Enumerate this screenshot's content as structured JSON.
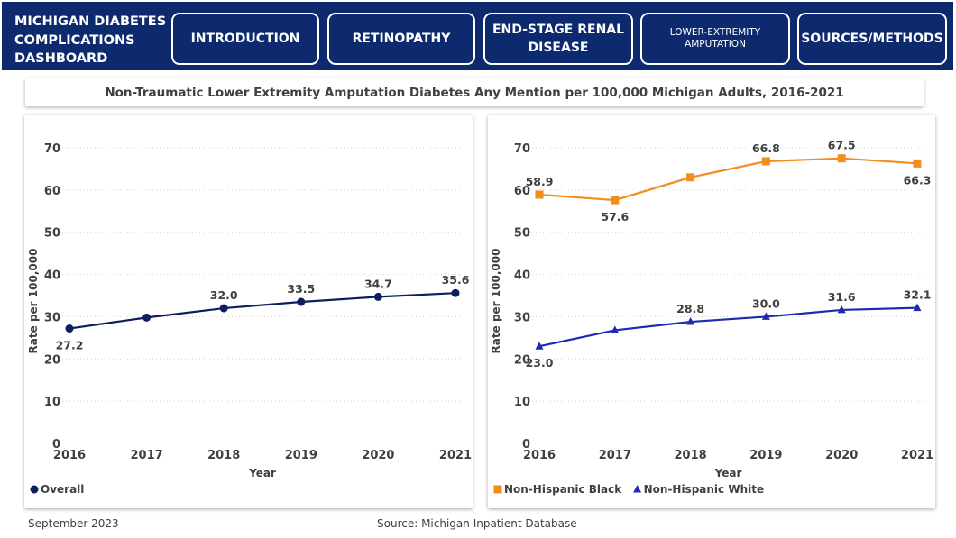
{
  "header": {
    "brand": "MICHIGAN DIABETES COMPLICATIONS DASHBOARD",
    "nav": [
      {
        "label": "INTRODUCTION"
      },
      {
        "label": "RETINOPATHY"
      },
      {
        "label": "END-STAGE RENAL DISEASE"
      },
      {
        "label": "LOWER-EXTREMITY AMPUTATION"
      },
      {
        "label": "SOURCES/METHODS"
      }
    ]
  },
  "title": "Non-Traumatic Lower Extremity Amputation Diabetes Any Mention per 100,000 Michigan Adults, 2016-2021",
  "footer": {
    "date": "September 2023",
    "source": "Source: Michigan Inpatient Database"
  },
  "colors": {
    "navy": "#0e2a6e",
    "overall": "#0d1e5e",
    "black": "#f28e1c",
    "white": "#1e2bb0"
  },
  "chart_data": [
    {
      "type": "line",
      "categories": [
        "2016",
        "2017",
        "2018",
        "2019",
        "2020",
        "2021"
      ],
      "xlabel": "Year",
      "ylabel": "Rate per 100,000",
      "ylim": [
        0,
        70
      ],
      "yticks": [
        0,
        10,
        20,
        30,
        40,
        50,
        60,
        70
      ],
      "grid": true,
      "legend": "bottom-left",
      "series": [
        {
          "name": "Overall",
          "color": "#0d1e5e",
          "marker": "circle",
          "values": [
            27.2,
            29.8,
            32.0,
            33.5,
            34.7,
            35.6
          ],
          "labels": [
            "27.2",
            "",
            "32.0",
            "33.5",
            "34.7",
            "35.6"
          ]
        }
      ]
    },
    {
      "type": "line",
      "categories": [
        "2016",
        "2017",
        "2018",
        "2019",
        "2020",
        "2021"
      ],
      "xlabel": "Year",
      "ylabel": "Rate per 100,000",
      "ylim": [
        0,
        70
      ],
      "yticks": [
        0,
        10,
        20,
        30,
        40,
        50,
        60,
        70
      ],
      "grid": true,
      "legend": "bottom-left",
      "series": [
        {
          "name": "Non-Hispanic Black",
          "color": "#f28e1c",
          "marker": "square",
          "values": [
            58.9,
            57.6,
            63.0,
            66.8,
            67.5,
            66.3
          ],
          "labels": [
            "58.9",
            "57.6",
            "",
            "66.8",
            "67.5",
            "66.3"
          ]
        },
        {
          "name": "Non-Hispanic White",
          "color": "#1e2bb0",
          "marker": "triangle",
          "values": [
            23.0,
            26.8,
            28.8,
            30.0,
            31.6,
            32.1
          ],
          "labels": [
            "23.0",
            "",
            "28.8",
            "30.0",
            "31.6",
            "32.1"
          ]
        }
      ]
    }
  ]
}
